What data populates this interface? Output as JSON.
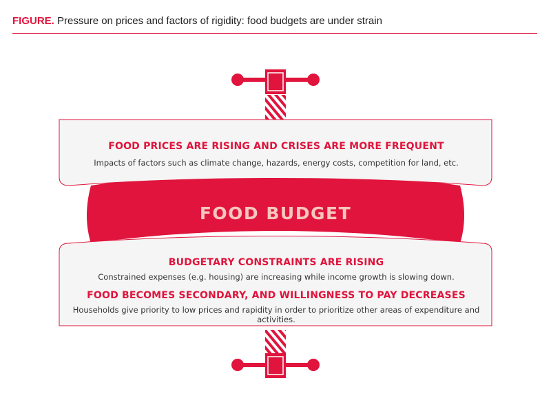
{
  "header": {
    "tag": "FIGURE.",
    "title": "Pressure on prices and factors of rigidity: food budgets are under strain"
  },
  "top_panel": {
    "title": "FOOD PRICES ARE RISING AND CRISES ARE MORE FREQUENT",
    "description": "Impacts of factors such as climate change, hazards, energy costs, competition for land, etc."
  },
  "center": {
    "label": "FOOD BUDGET"
  },
  "bottom_panel": {
    "title1": "BUDGETARY CONSTRAINTS ARE RISING",
    "description1": "Constrained expenses (e.g. housing) are increasing while income growth is slowing down.",
    "title2": "FOOD BECOMES SECONDARY, AND WILLINGNESS TO PAY DECREASES",
    "description2": "Households give priority to low prices and rapidity in order to prioritize other areas of expenditure and activities."
  },
  "colors": {
    "accent": "#e0143c",
    "center_text": "#f7c6bd",
    "panel_border": "#e0143c"
  }
}
